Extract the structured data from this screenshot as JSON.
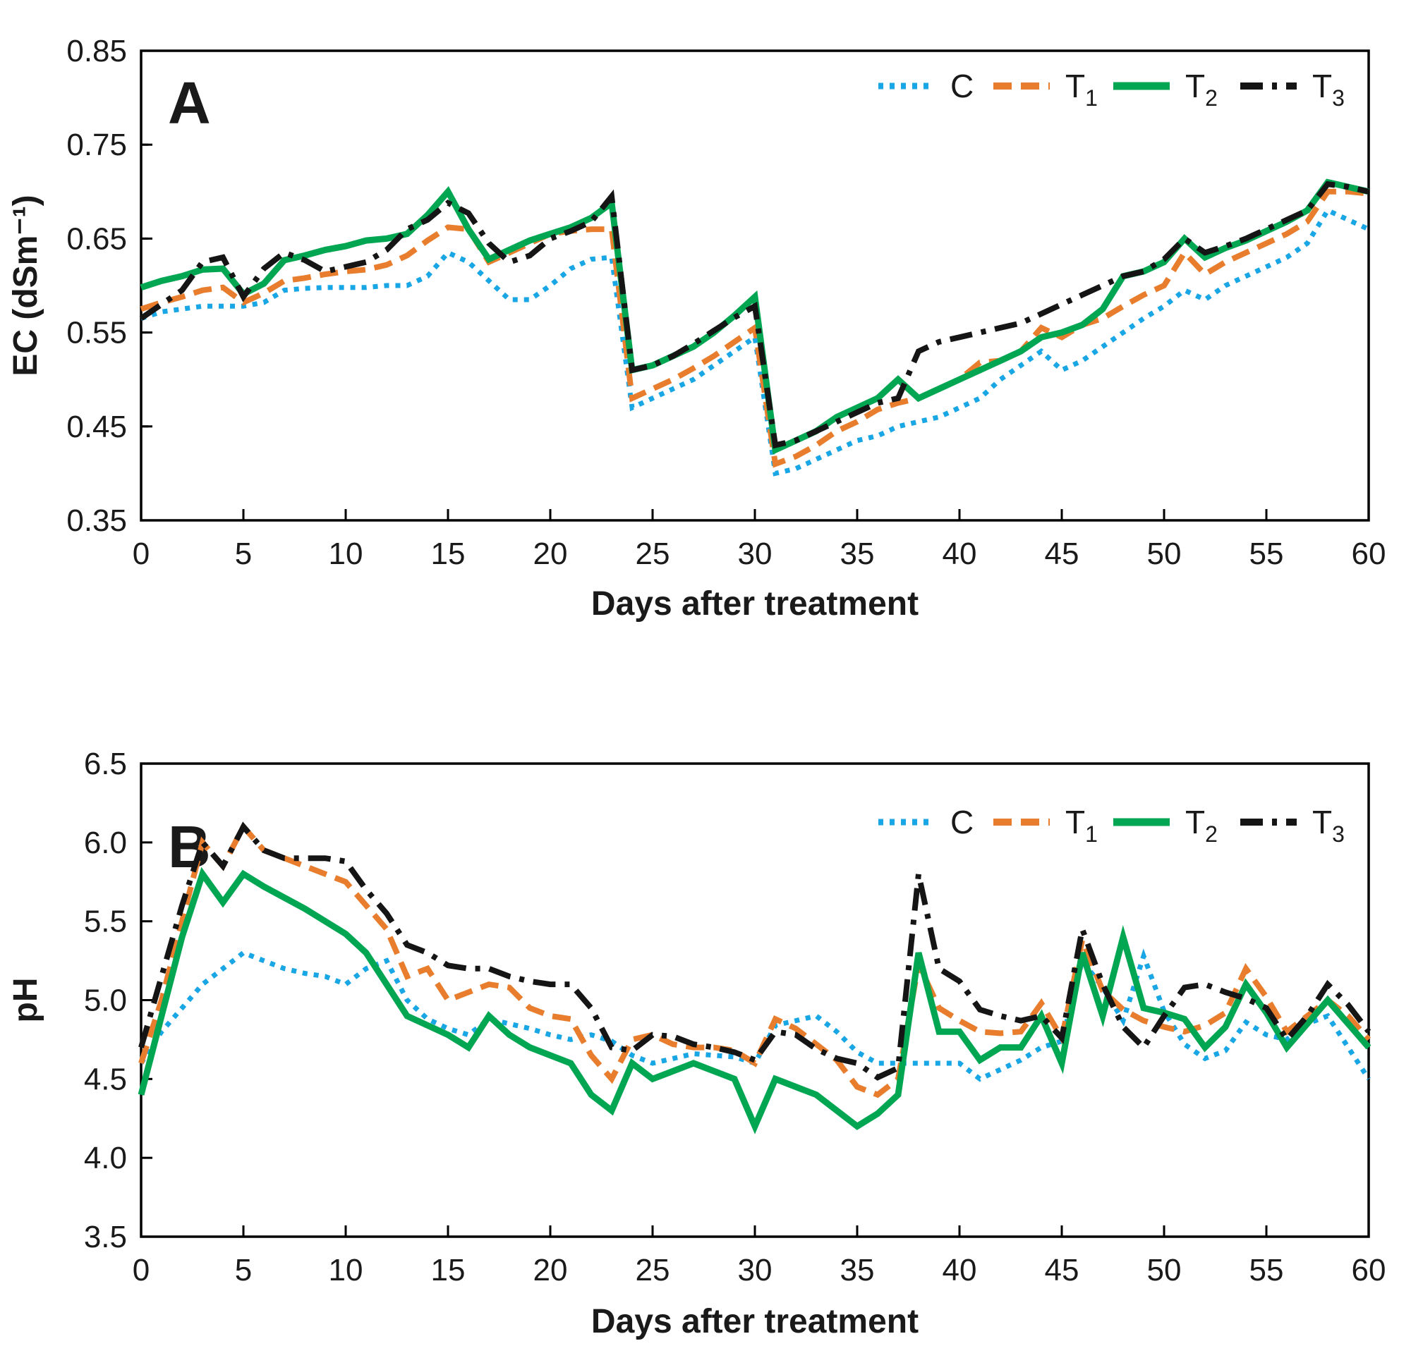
{
  "figure": {
    "xlabel": "Days after treatment",
    "panelA": {
      "letter": "A",
      "ylabel": "EC (dSm⁻¹)"
    },
    "panelB": {
      "letter": "B",
      "ylabel": "pH"
    },
    "legend_labels": [
      "C",
      "T1",
      "T2",
      "T3"
    ]
  },
  "colors": {
    "C": "#19a6e5",
    "T1": "#e87e2d",
    "T2": "#00a651",
    "T3": "#151515"
  },
  "chart_data": [
    {
      "type": "line",
      "panel": "A",
      "title": "",
      "xlabel": "Days after treatment",
      "ylabel": "EC (dSm⁻¹)",
      "xlim": [
        0,
        60
      ],
      "xtick_step": 5,
      "ylim": [
        0.35,
        0.85
      ],
      "ytick_step": 0.1,
      "yminor_step": 0.05,
      "ydecimals": 2,
      "grid": false,
      "legend_position": "top-right-inside",
      "x_start": 0,
      "x_step": 1,
      "series": [
        {
          "name": "C",
          "sub": "",
          "style": "dotted",
          "color": "#19a6e5",
          "values": [
            0.565,
            0.572,
            0.575,
            0.578,
            0.578,
            0.578,
            0.582,
            0.595,
            0.597,
            0.598,
            0.598,
            0.598,
            0.6,
            0.6,
            0.61,
            0.635,
            0.625,
            0.605,
            0.585,
            0.585,
            0.6,
            0.618,
            0.628,
            0.63,
            0.47,
            0.48,
            0.49,
            0.5,
            0.515,
            0.53,
            0.545,
            0.4,
            0.405,
            0.415,
            0.425,
            0.435,
            0.44,
            0.45,
            0.455,
            0.46,
            0.47,
            0.48,
            0.5,
            0.515,
            0.53,
            0.51,
            0.52,
            0.535,
            0.55,
            0.565,
            0.578,
            0.595,
            0.585,
            0.6,
            0.61,
            0.62,
            0.63,
            0.645,
            0.68,
            0.67,
            0.66
          ]
        },
        {
          "name": "T",
          "sub": "1",
          "style": "dashed",
          "color": "#e87e2d",
          "values": [
            0.575,
            0.582,
            0.588,
            0.595,
            0.598,
            0.582,
            0.592,
            0.605,
            0.608,
            0.612,
            0.615,
            0.617,
            0.622,
            0.632,
            0.648,
            0.662,
            0.66,
            0.625,
            0.635,
            0.645,
            0.655,
            0.658,
            0.66,
            0.66,
            0.48,
            0.49,
            0.5,
            0.512,
            0.525,
            0.54,
            0.555,
            0.41,
            0.418,
            0.43,
            0.445,
            0.455,
            0.468,
            0.475,
            0.48,
            0.49,
            0.5,
            0.518,
            0.52,
            0.53,
            0.555,
            0.545,
            0.558,
            0.565,
            0.578,
            0.59,
            0.6,
            0.635,
            0.612,
            0.625,
            0.635,
            0.645,
            0.655,
            0.668,
            0.7,
            0.7,
            0.698
          ]
        },
        {
          "name": "T",
          "sub": "2",
          "style": "solid",
          "color": "#00a651",
          "values": [
            0.598,
            0.605,
            0.61,
            0.617,
            0.618,
            0.591,
            0.602,
            0.627,
            0.632,
            0.638,
            0.642,
            0.648,
            0.65,
            0.655,
            0.675,
            0.7,
            0.66,
            0.628,
            0.638,
            0.648,
            0.655,
            0.662,
            0.672,
            0.688,
            0.51,
            0.515,
            0.525,
            0.535,
            0.55,
            0.568,
            0.588,
            0.425,
            0.435,
            0.445,
            0.46,
            0.47,
            0.48,
            0.5,
            0.48,
            0.49,
            0.5,
            0.51,
            0.52,
            0.53,
            0.545,
            0.55,
            0.558,
            0.575,
            0.61,
            0.615,
            0.625,
            0.65,
            0.63,
            0.64,
            0.648,
            0.658,
            0.668,
            0.68,
            0.71,
            0.705,
            0.7
          ]
        },
        {
          "name": "T",
          "sub": "3",
          "style": "dashdot",
          "color": "#151515",
          "values": [
            0.565,
            0.58,
            0.595,
            0.625,
            0.63,
            0.588,
            0.618,
            0.635,
            0.627,
            0.615,
            0.62,
            0.625,
            0.638,
            0.66,
            0.67,
            0.688,
            0.677,
            0.645,
            0.625,
            0.632,
            0.65,
            0.658,
            0.668,
            0.695,
            0.51,
            0.515,
            0.525,
            0.538,
            0.552,
            0.566,
            0.578,
            0.43,
            0.435,
            0.445,
            0.455,
            0.465,
            0.475,
            0.48,
            0.53,
            0.54,
            0.545,
            0.55,
            0.555,
            0.56,
            0.57,
            0.58,
            0.59,
            0.6,
            0.61,
            0.615,
            0.628,
            0.65,
            0.635,
            0.642,
            0.65,
            0.66,
            0.67,
            0.68,
            0.708,
            0.705,
            0.7
          ]
        }
      ]
    },
    {
      "type": "line",
      "panel": "B",
      "title": "",
      "xlabel": "Days after treatment",
      "ylabel": "pH",
      "xlim": [
        0,
        60
      ],
      "xtick_step": 5,
      "ylim": [
        3.5,
        6.5
      ],
      "ytick_step": 0.5,
      "yminor_step": 0,
      "ydecimals": 1,
      "grid": false,
      "legend_position": "top-right-inside",
      "x_start": 0,
      "x_step": 1,
      "series": [
        {
          "name": "C",
          "sub": "",
          "style": "dotted",
          "color": "#19a6e5",
          "values": [
            4.6,
            4.8,
            4.95,
            5.1,
            5.2,
            5.3,
            5.25,
            5.2,
            5.17,
            5.15,
            5.1,
            5.2,
            5.25,
            5.0,
            4.88,
            4.82,
            4.78,
            4.88,
            4.85,
            4.82,
            4.78,
            4.75,
            4.78,
            4.74,
            4.65,
            4.6,
            4.63,
            4.66,
            4.65,
            4.64,
            4.6,
            4.84,
            4.87,
            4.9,
            4.8,
            4.67,
            4.6,
            4.6,
            4.6,
            4.6,
            4.6,
            4.5,
            4.56,
            4.62,
            4.7,
            4.74,
            5.25,
            5.08,
            4.87,
            5.28,
            4.93,
            4.72,
            4.63,
            4.68,
            4.86,
            4.78,
            4.75,
            4.85,
            4.9,
            4.7,
            4.5
          ]
        },
        {
          "name": "T",
          "sub": "1",
          "style": "dashed",
          "color": "#e87e2d",
          "values": [
            4.6,
            5.0,
            5.5,
            6.0,
            5.85,
            6.1,
            5.95,
            5.9,
            5.85,
            5.8,
            5.75,
            5.6,
            5.45,
            5.15,
            5.2,
            5.0,
            5.05,
            5.1,
            5.08,
            4.95,
            4.9,
            4.88,
            4.65,
            4.5,
            4.75,
            4.78,
            4.72,
            4.7,
            4.7,
            4.68,
            4.6,
            4.88,
            4.82,
            4.72,
            4.62,
            4.45,
            4.4,
            4.5,
            5.23,
            4.95,
            4.87,
            4.8,
            4.79,
            4.8,
            4.98,
            4.76,
            5.38,
            5.06,
            4.94,
            4.87,
            4.83,
            4.8,
            4.84,
            4.92,
            5.2,
            5.02,
            4.8,
            4.9,
            5.0,
            4.9,
            4.75
          ]
        },
        {
          "name": "T",
          "sub": "2",
          "style": "solid",
          "color": "#00a651",
          "values": [
            4.4,
            4.9,
            5.4,
            5.8,
            5.62,
            5.8,
            5.72,
            5.65,
            5.58,
            5.5,
            5.42,
            5.3,
            5.1,
            4.9,
            4.84,
            4.78,
            4.7,
            4.9,
            4.78,
            4.7,
            4.65,
            4.6,
            4.4,
            4.3,
            4.6,
            4.5,
            4.55,
            4.6,
            4.55,
            4.5,
            4.2,
            4.5,
            4.45,
            4.4,
            4.3,
            4.2,
            4.28,
            4.4,
            5.3,
            4.8,
            4.8,
            4.62,
            4.7,
            4.7,
            4.9,
            4.6,
            5.3,
            4.9,
            5.4,
            4.95,
            4.92,
            4.88,
            4.7,
            4.83,
            5.1,
            4.92,
            4.7,
            4.85,
            5.0,
            4.85,
            4.7
          ]
        },
        {
          "name": "T",
          "sub": "3",
          "style": "dashdot",
          "color": "#151515",
          "values": [
            4.7,
            5.15,
            5.6,
            6.0,
            5.85,
            6.1,
            5.95,
            5.9,
            5.9,
            5.9,
            5.88,
            5.7,
            5.55,
            5.35,
            5.3,
            5.22,
            5.2,
            5.2,
            5.15,
            5.12,
            5.1,
            5.1,
            4.95,
            4.7,
            4.68,
            4.78,
            4.77,
            4.72,
            4.7,
            4.67,
            4.62,
            4.8,
            4.78,
            4.69,
            4.63,
            4.6,
            4.51,
            4.57,
            5.8,
            5.2,
            5.12,
            4.94,
            4.9,
            4.87,
            4.9,
            4.76,
            5.45,
            5.1,
            4.83,
            4.7,
            4.9,
            5.08,
            5.1,
            5.05,
            5.01,
            4.95,
            4.75,
            4.9,
            5.1,
            4.97,
            4.8
          ]
        }
      ]
    }
  ]
}
